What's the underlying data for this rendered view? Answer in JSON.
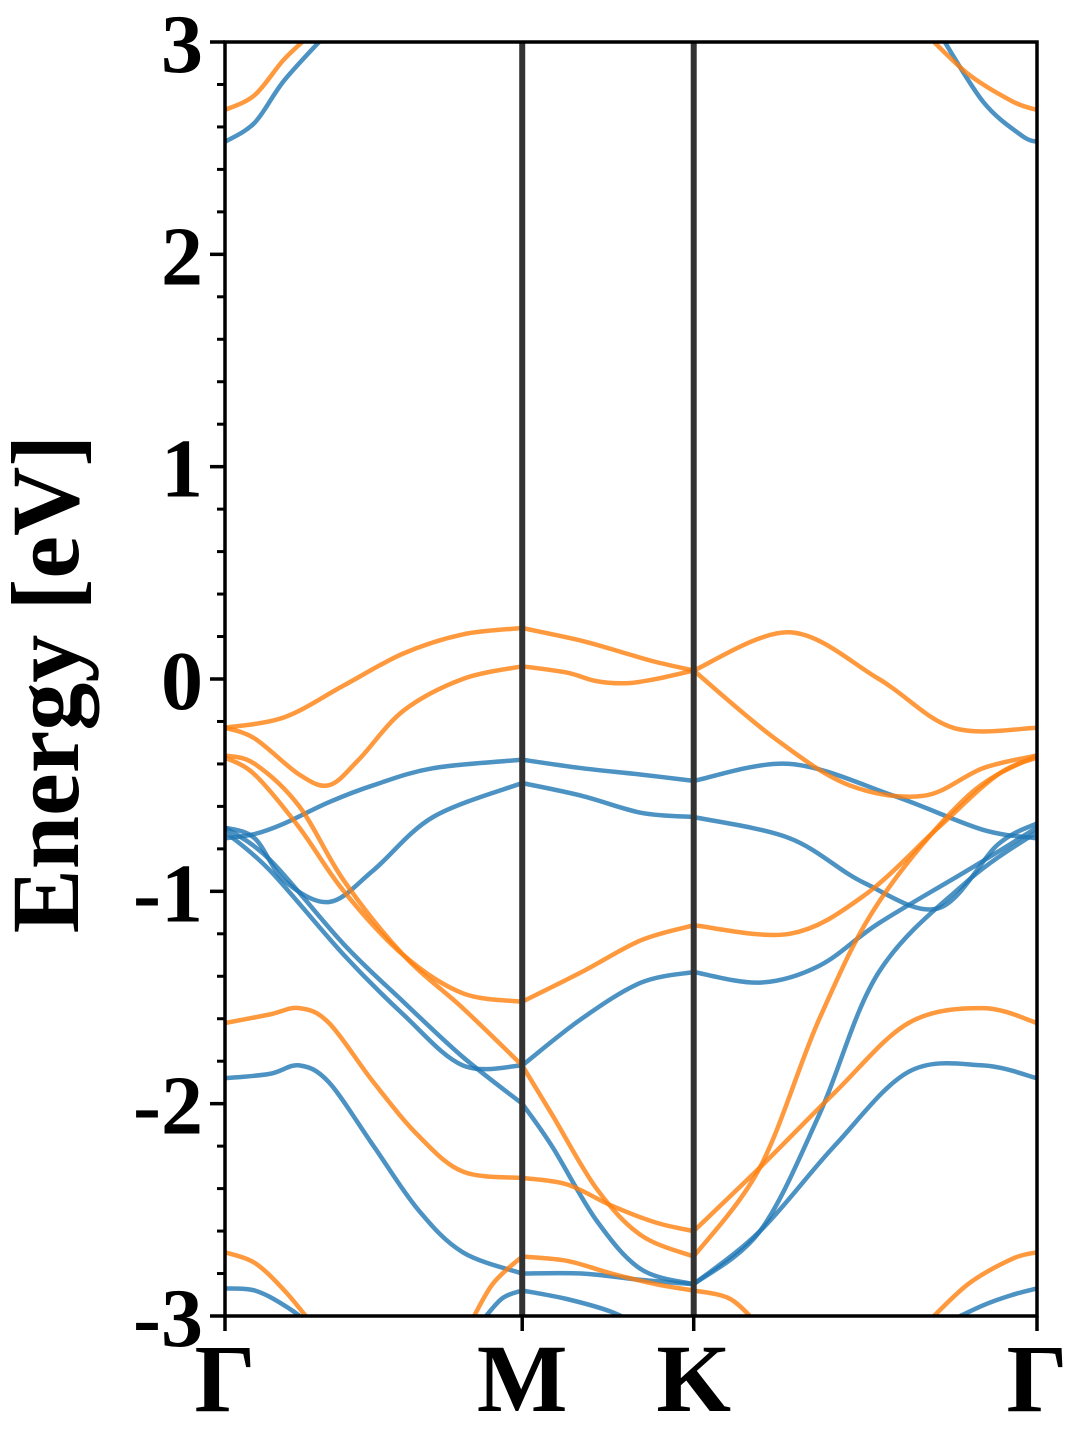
{
  "chart_data": {
    "type": "line",
    "ylabel": "Energy [eV]",
    "xlabel": "",
    "ylim": [
      -3,
      3
    ],
    "xlim": [
      0,
      2.732
    ],
    "yticks": [
      -3,
      -2,
      -1,
      0,
      1,
      2,
      3
    ],
    "ytick_labels": [
      "-3",
      "-2",
      "-1",
      "0",
      "1",
      "2",
      "3"
    ],
    "y_minor_step": 0.2,
    "high_symmetry_points": [
      {
        "label": "Γ",
        "x": 0
      },
      {
        "label": "M",
        "x": 1.0
      },
      {
        "label": "K",
        "x": 1.577
      },
      {
        "label": "Γ",
        "x": 2.732
      }
    ],
    "vertical_lines_at": [
      1.0,
      1.577
    ],
    "colors": {
      "spin_a": "#1f77b4",
      "spin_b": "#ff7f0e",
      "vline": "#333333"
    },
    "series": [
      {
        "color": "spin_a",
        "x": [
          0,
          0.1,
          0.2,
          0.35
        ],
        "y": [
          2.53,
          2.62,
          2.82,
          3.05
        ]
      },
      {
        "color": "spin_a",
        "x": [
          0,
          0.1,
          0.2,
          0.35,
          0.5,
          0.7,
          1.0
        ],
        "y": [
          -0.75,
          -0.73,
          -0.68,
          -0.58,
          -0.5,
          -0.42,
          -0.38
        ]
      },
      {
        "color": "spin_a",
        "x": [
          0,
          0.1,
          0.2,
          0.35,
          0.5,
          0.7,
          1.0
        ],
        "y": [
          -0.7,
          -0.75,
          -0.95,
          -1.05,
          -0.9,
          -0.65,
          -0.49
        ]
      },
      {
        "color": "spin_a",
        "x": [
          0,
          0.15,
          0.4,
          0.6,
          0.8,
          1.0
        ],
        "y": [
          -0.7,
          -0.85,
          -1.25,
          -1.52,
          -1.78,
          -2.0
        ]
      },
      {
        "color": "spin_a",
        "x": [
          0,
          0.15,
          0.4,
          0.6,
          0.8,
          1.0
        ],
        "y": [
          -0.72,
          -0.9,
          -1.3,
          -1.58,
          -1.82,
          -1.82
        ]
      },
      {
        "color": "spin_a",
        "x": [
          0,
          0.15,
          0.25,
          0.35,
          0.5,
          0.65,
          0.8,
          1.0
        ],
        "y": [
          -1.88,
          -1.86,
          -1.82,
          -1.9,
          -2.2,
          -2.5,
          -2.7,
          -2.8
        ]
      },
      {
        "color": "spin_a",
        "x": [
          0,
          0.1,
          0.2,
          0.3
        ],
        "y": [
          -2.87,
          -2.88,
          -2.95,
          -3.05
        ]
      },
      {
        "color": "spin_a",
        "x": [
          0.85,
          0.93,
          1.0
        ],
        "y": [
          -3.05,
          -2.92,
          -2.88
        ]
      },
      {
        "color": "spin_b",
        "x": [
          0,
          0.1,
          0.2,
          0.3
        ],
        "y": [
          2.68,
          2.75,
          2.92,
          3.05
        ]
      },
      {
        "color": "spin_b",
        "x": [
          0,
          0.2,
          0.4,
          0.6,
          0.8,
          1.0
        ],
        "y": [
          -0.23,
          -0.18,
          -0.03,
          0.12,
          0.21,
          0.24
        ]
      },
      {
        "color": "spin_b",
        "x": [
          0,
          0.1,
          0.25,
          0.35,
          0.45,
          0.6,
          0.8,
          1.0
        ],
        "y": [
          -0.23,
          -0.28,
          -0.45,
          -0.5,
          -0.38,
          -0.15,
          0.0,
          0.06
        ]
      },
      {
        "color": "spin_b",
        "x": [
          0,
          0.1,
          0.25,
          0.4,
          0.6,
          0.8,
          1.0
        ],
        "y": [
          -0.36,
          -0.4,
          -0.6,
          -0.95,
          -1.3,
          -1.55,
          -1.82
        ]
      },
      {
        "color": "spin_b",
        "x": [
          0,
          0.1,
          0.25,
          0.4,
          0.6,
          0.8,
          1.0
        ],
        "y": [
          -0.37,
          -0.45,
          -0.7,
          -1.0,
          -1.3,
          -1.48,
          -1.52
        ]
      },
      {
        "color": "spin_b",
        "x": [
          0,
          0.15,
          0.25,
          0.35,
          0.5,
          0.65,
          0.8,
          1.0
        ],
        "y": [
          -1.62,
          -1.58,
          -1.55,
          -1.62,
          -1.9,
          -2.15,
          -2.32,
          -2.35
        ]
      },
      {
        "color": "spin_b",
        "x": [
          0,
          0.1,
          0.2,
          0.3
        ],
        "y": [
          -2.7,
          -2.75,
          -2.88,
          -3.05
        ]
      },
      {
        "color": "spin_b",
        "x": [
          0.82,
          0.9,
          1.0
        ],
        "y": [
          -3.05,
          -2.85,
          -2.72
        ]
      },
      {
        "color": "spin_a",
        "x": [
          1.0,
          1.2,
          1.4,
          1.577
        ],
        "y": [
          -0.38,
          -0.42,
          -0.45,
          -0.48
        ]
      },
      {
        "color": "spin_a",
        "x": [
          1.0,
          1.2,
          1.4,
          1.577
        ],
        "y": [
          -0.49,
          -0.55,
          -0.63,
          -0.65
        ]
      },
      {
        "color": "spin_a",
        "x": [
          1.0,
          1.2,
          1.4,
          1.577
        ],
        "y": [
          -1.82,
          -1.6,
          -1.43,
          -1.38
        ]
      },
      {
        "color": "spin_a",
        "x": [
          1.0,
          1.1,
          1.25,
          1.4,
          1.577
        ],
        "y": [
          -2.0,
          -2.2,
          -2.55,
          -2.78,
          -2.85
        ]
      },
      {
        "color": "spin_a",
        "x": [
          1.0,
          1.2,
          1.4,
          1.577
        ],
        "y": [
          -2.8,
          -2.8,
          -2.83,
          -2.85
        ]
      },
      {
        "color": "spin_a",
        "x": [
          1.0,
          1.15,
          1.3,
          1.4
        ],
        "y": [
          -2.88,
          -2.92,
          -2.98,
          -3.05
        ]
      },
      {
        "color": "spin_b",
        "x": [
          1.0,
          1.2,
          1.35,
          1.45,
          1.577
        ],
        "y": [
          0.24,
          0.18,
          0.12,
          0.08,
          0.04
        ]
      },
      {
        "color": "spin_b",
        "x": [
          1.0,
          1.15,
          1.25,
          1.35,
          1.45,
          1.577
        ],
        "y": [
          0.06,
          0.03,
          -0.01,
          -0.02,
          0.0,
          0.04
        ]
      },
      {
        "color": "spin_b",
        "x": [
          1.0,
          1.2,
          1.4,
          1.577
        ],
        "y": [
          -1.52,
          -1.38,
          -1.23,
          -1.16
        ]
      },
      {
        "color": "spin_b",
        "x": [
          1.0,
          1.1,
          1.25,
          1.4,
          1.577
        ],
        "y": [
          -1.82,
          -2.05,
          -2.4,
          -2.62,
          -2.72
        ]
      },
      {
        "color": "spin_b",
        "x": [
          1.0,
          1.15,
          1.3,
          1.45,
          1.577
        ],
        "y": [
          -2.35,
          -2.38,
          -2.48,
          -2.56,
          -2.6
        ]
      },
      {
        "color": "spin_b",
        "x": [
          1.0,
          1.15,
          1.3,
          1.45,
          1.577
        ],
        "y": [
          -2.72,
          -2.74,
          -2.8,
          -2.85,
          -2.88
        ]
      },
      {
        "color": "spin_a",
        "x": [
          1.577,
          1.9,
          2.25,
          2.55,
          2.732
        ],
        "y": [
          -0.48,
          -0.4,
          -0.55,
          -0.71,
          -0.75
        ]
      },
      {
        "color": "spin_a",
        "x": [
          1.577,
          1.9,
          2.15,
          2.4,
          2.6,
          2.732
        ],
        "y": [
          -0.65,
          -0.75,
          -0.96,
          -1.08,
          -0.78,
          -0.68
        ]
      },
      {
        "color": "spin_a",
        "x": [
          1.577,
          1.8,
          2.0,
          2.2,
          2.5,
          2.732
        ],
        "y": [
          -1.38,
          -1.43,
          -1.35,
          -1.15,
          -0.9,
          -0.7
        ]
      },
      {
        "color": "spin_a",
        "x": [
          1.577,
          1.8,
          2.0,
          2.2,
          2.5,
          2.732
        ],
        "y": [
          -2.85,
          -2.6,
          -2.05,
          -1.38,
          -0.95,
          -0.72
        ]
      },
      {
        "color": "spin_a",
        "x": [
          1.577,
          1.8,
          2.05,
          2.3,
          2.55,
          2.732
        ],
        "y": [
          -2.85,
          -2.6,
          -2.2,
          -1.85,
          -1.82,
          -1.88
        ]
      },
      {
        "color": "spin_a",
        "x": [
          2.4,
          2.55,
          2.65,
          2.732
        ],
        "y": [
          -3.05,
          -2.95,
          -2.9,
          -2.87
        ]
      },
      {
        "color": "spin_a",
        "x": [
          2.4,
          2.55,
          2.68,
          2.732
        ],
        "y": [
          3.05,
          2.72,
          2.56,
          2.53
        ]
      },
      {
        "color": "spin_b",
        "x": [
          1.577,
          1.9,
          2.2,
          2.45,
          2.732
        ],
        "y": [
          0.04,
          0.22,
          0.0,
          -0.23,
          -0.23
        ]
      },
      {
        "color": "spin_b",
        "x": [
          1.577,
          1.85,
          2.1,
          2.35,
          2.55,
          2.732
        ],
        "y": [
          0.04,
          -0.28,
          -0.5,
          -0.55,
          -0.42,
          -0.36
        ]
      },
      {
        "color": "spin_b",
        "x": [
          1.577,
          1.9,
          2.15,
          2.4,
          2.6,
          2.732
        ],
        "y": [
          -1.16,
          -1.2,
          -1.02,
          -0.7,
          -0.45,
          -0.37
        ]
      },
      {
        "color": "spin_b",
        "x": [
          1.577,
          1.8,
          2.0,
          2.2,
          2.5,
          2.732
        ],
        "y": [
          -2.72,
          -2.3,
          -1.6,
          -1.05,
          -0.55,
          -0.36
        ]
      },
      {
        "color": "spin_b",
        "x": [
          1.577,
          1.8,
          2.05,
          2.3,
          2.55,
          2.732
        ],
        "y": [
          -2.6,
          -2.3,
          -1.95,
          -1.62,
          -1.55,
          -1.62
        ]
      },
      {
        "color": "spin_b",
        "x": [
          1.577,
          1.7,
          1.8
        ],
        "y": [
          -2.88,
          -2.92,
          -3.05
        ]
      },
      {
        "color": "spin_b",
        "x": [
          2.35,
          2.5,
          2.65,
          2.732
        ],
        "y": [
          -3.05,
          -2.85,
          -2.73,
          -2.7
        ]
      },
      {
        "color": "spin_b",
        "x": [
          2.35,
          2.5,
          2.65,
          2.732
        ],
        "y": [
          3.05,
          2.85,
          2.72,
          2.68
        ]
      }
    ]
  }
}
